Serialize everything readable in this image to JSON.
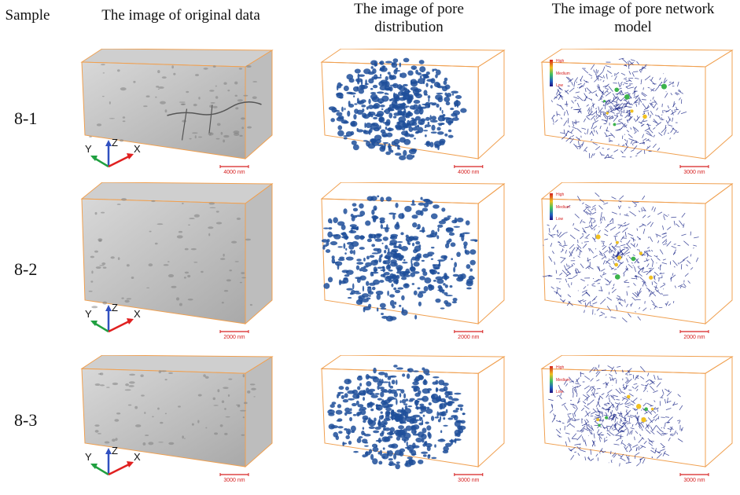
{
  "headers": {
    "sample": "Sample",
    "original": "The image of original data",
    "pore_line1": "The image of pore",
    "pore_line2": "distribution",
    "network_line1": "The image of pore network",
    "network_line2": "model"
  },
  "rows": [
    {
      "label": "8-1",
      "orig_scale": "4000 nm",
      "pore_scale": "4000 nm",
      "net_scale": "3000 nm",
      "legend": {
        "high": "High",
        "medium": "Medium",
        "low": "Low"
      }
    },
    {
      "label": "8-2",
      "orig_scale": "2000 nm",
      "pore_scale": "2000 nm",
      "net_scale": "2000 nm",
      "legend": {
        "high": "High",
        "medium": "Medium",
        "low": "Low"
      }
    },
    {
      "label": "8-3",
      "orig_scale": "3000 nm",
      "pore_scale": "3000 nm",
      "net_scale": "3000 nm",
      "legend": {
        "high": "High",
        "medium": "Medium",
        "low": "Low"
      }
    }
  ],
  "axes": {
    "x": "X",
    "y": "Y",
    "z": "Z"
  },
  "colors": {
    "box_edge": "#f0a050",
    "scale_bar": "#d62020",
    "pore_blue": "#1f4f9a",
    "axis_x": "#e02020",
    "axis_y": "#20a040",
    "axis_z": "#3050c0"
  }
}
